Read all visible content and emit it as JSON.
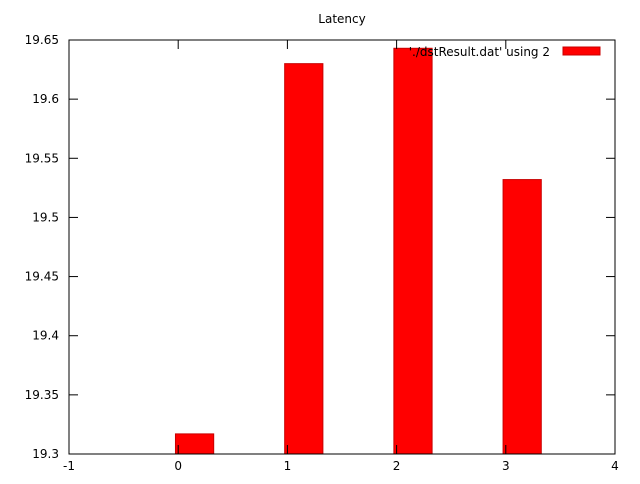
{
  "chart_data": {
    "type": "bar",
    "title": "Latency",
    "xlabel": "",
    "ylabel": "",
    "x": [
      0.15,
      1.15,
      2.15,
      3.15
    ],
    "values": [
      19.317,
      19.63,
      19.643,
      19.532
    ],
    "bar_width": 0.35,
    "xlim": [
      -1,
      4
    ],
    "ylim": [
      19.3,
      19.65
    ],
    "xticks": [
      -1,
      0,
      1,
      2,
      3,
      4
    ],
    "xtick_labels": [
      "-1",
      "0",
      "1",
      "2",
      "3",
      "4"
    ],
    "yticks": [
      19.3,
      19.35,
      19.4,
      19.45,
      19.5,
      19.55,
      19.6,
      19.65
    ],
    "ytick_labels": [
      "19.3",
      "19.35",
      "19.4",
      "19.45",
      "19.5",
      "19.55",
      "19.6",
      "19.65"
    ],
    "grid": false,
    "legend": {
      "label": "'./dstResult.dat' using 2",
      "placement": "top-right"
    },
    "colors": {
      "bar": "#ff0000",
      "bar_edge": "#c80000",
      "axis": "#000000",
      "background": "#ffffff"
    }
  }
}
